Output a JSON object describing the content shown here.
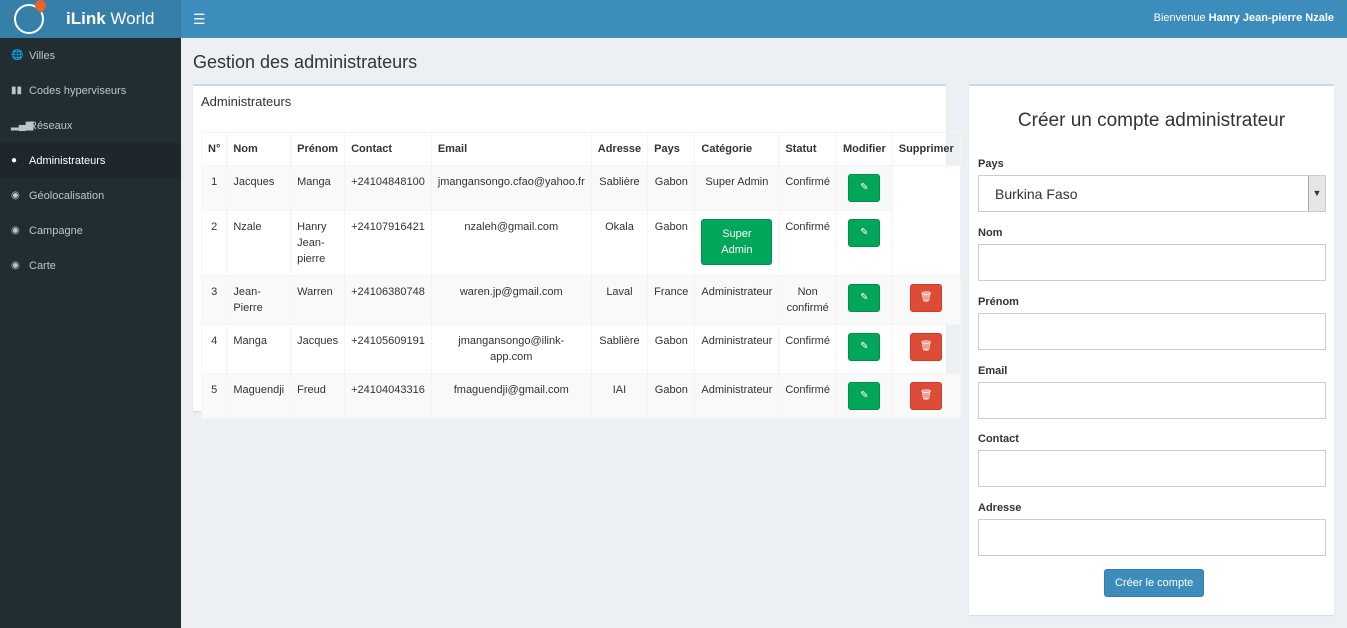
{
  "app": {
    "brand_bold": "iLink",
    "brand_rest": " World",
    "welcome_prefix": "Bienvenue ",
    "user": "Hanry Jean-pierre Nzale",
    "menu_icon": "bars-icon"
  },
  "sidebar": {
    "items": [
      {
        "label": "Villes",
        "icon": "globe-icon",
        "active": false
      },
      {
        "label": "Codes hyperviseurs",
        "icon": "barcode-icon",
        "active": false
      },
      {
        "label": "Réseaux",
        "icon": "signal-icon",
        "active": false
      },
      {
        "label": "Administrateurs",
        "icon": "user-icon",
        "active": true
      },
      {
        "label": "Géolocalisation",
        "icon": "map-marker-icon",
        "active": false
      },
      {
        "label": "Campagne",
        "icon": "map-marker-icon",
        "active": false
      },
      {
        "label": "Carte",
        "icon": "map-marker-icon",
        "active": false
      }
    ]
  },
  "page": {
    "title": "Gestion des administrateurs"
  },
  "list": {
    "title": "Administrateurs",
    "columns": [
      "N°",
      "Nom",
      "Prénom",
      "Contact",
      "Email",
      "Adresse",
      "Pays",
      "Catégorie",
      "Statut",
      "Modifier",
      "Supprimer"
    ],
    "rows": [
      {
        "n": "1",
        "nom": "Jacques",
        "prenom": "Manga",
        "contact": "+24104848100",
        "email": "jmangansongo.cfao@yahoo.fr",
        "adresse": "Sablière",
        "pays": "Gabon",
        "categorie": "Super Admin",
        "statut": "Confirmé"
      },
      {
        "n": "2",
        "nom": "Nzale",
        "prenom": "Hanry Jean-pierre",
        "contact": "+24107916421",
        "email": "nzaleh@gmail.com",
        "adresse": "Okala",
        "pays": "Gabon",
        "categorie": "Super Admin",
        "statut": "Confirmé"
      },
      {
        "n": "3",
        "nom": "Jean-Pierre",
        "prenom": "Warren",
        "contact": "+24106380748",
        "email": "waren.jp@gmail.com",
        "adresse": "Laval",
        "pays": "France",
        "categorie": "Administrateur",
        "statut": "Non confirmé"
      },
      {
        "n": "4",
        "nom": "Manga",
        "prenom": "Jacques",
        "contact": "+24105609191",
        "email": "jmangansongo@ilink-app.com",
        "adresse": "Sablière",
        "pays": "Gabon",
        "categorie": "Administrateur",
        "statut": "Confirmé"
      },
      {
        "n": "5",
        "nom": "Maguendji",
        "prenom": "Freud",
        "contact": "+24104043316",
        "email": "fmaguendji@gmail.com",
        "adresse": "IAI",
        "pays": "Gabon",
        "categorie": "Administrateur",
        "statut": "Confirmé"
      }
    ]
  },
  "form": {
    "title": "Créer un compte administrateur",
    "pays_label": "Pays",
    "pays_value": "Burkina Faso",
    "nom_label": "Nom",
    "prenom_label": "Prénom",
    "email_label": "Email",
    "contact_label": "Contact",
    "adresse_label": "Adresse",
    "submit": "Créer le compte"
  },
  "colors": {
    "primary": "#3c8dbc",
    "sidebar": "#222d32",
    "success": "#00a65a",
    "danger": "#dd4b39"
  }
}
